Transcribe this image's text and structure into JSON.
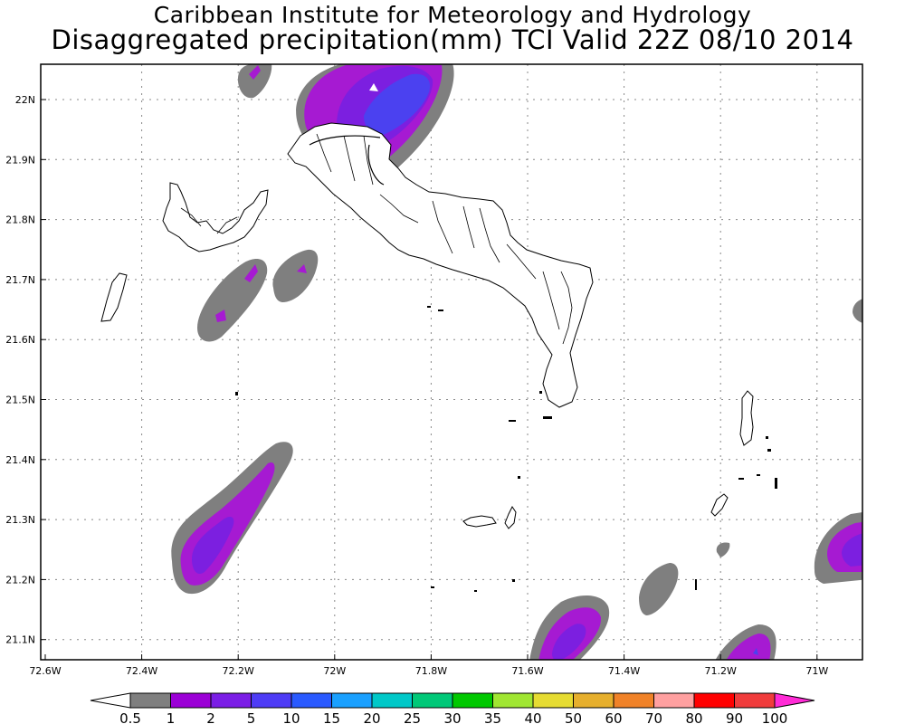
{
  "header": {
    "line1": "Caribbean Institute for Meteorology and Hydrology",
    "line2": "Disaggregated precipitation(mm) TCI Valid 22Z 08/10 2014"
  },
  "map": {
    "lon_range": [
      -72.6,
      -70.9
    ],
    "lat_range": [
      21.07,
      22.06
    ],
    "lon_ticks": [
      "72.6W",
      "72.4W",
      "72.2W",
      "72W",
      "71.8W",
      "71.6W",
      "71.4W",
      "71.2W",
      "71W"
    ],
    "lat_ticks": [
      "22N",
      "21.9N",
      "21.8N",
      "21.7N",
      "21.6N",
      "21.5N",
      "21.4N",
      "21.3N",
      "21.2N",
      "21.1N"
    ],
    "grid": true,
    "grid_style": "dotted"
  },
  "colorbar": {
    "labels": [
      "0.5",
      "1",
      "2",
      "5",
      "10",
      "15",
      "20",
      "25",
      "30",
      "35",
      "40",
      "50",
      "60",
      "70",
      "80",
      "90",
      "100"
    ],
    "colors": [
      "#7f7f7f",
      "#9b00d6",
      "#7b1ee6",
      "#4e3cf6",
      "#2a5aff",
      "#1aa0ff",
      "#00c8c8",
      "#00c878",
      "#00c800",
      "#a0e632",
      "#e6dc32",
      "#e6af2d",
      "#f08228",
      "#ffa0a0",
      "#ff0000",
      "#f03c3c"
    ],
    "low_color": "#ffffff",
    "high_color": "#ff2bd6"
  },
  "colors": {
    "grey": "#7f7f7f",
    "purple": "#a61ad2",
    "violet": "#7c1fe0",
    "blue": "#4b41f0",
    "land": "#ffffff",
    "coast": "#000000"
  }
}
